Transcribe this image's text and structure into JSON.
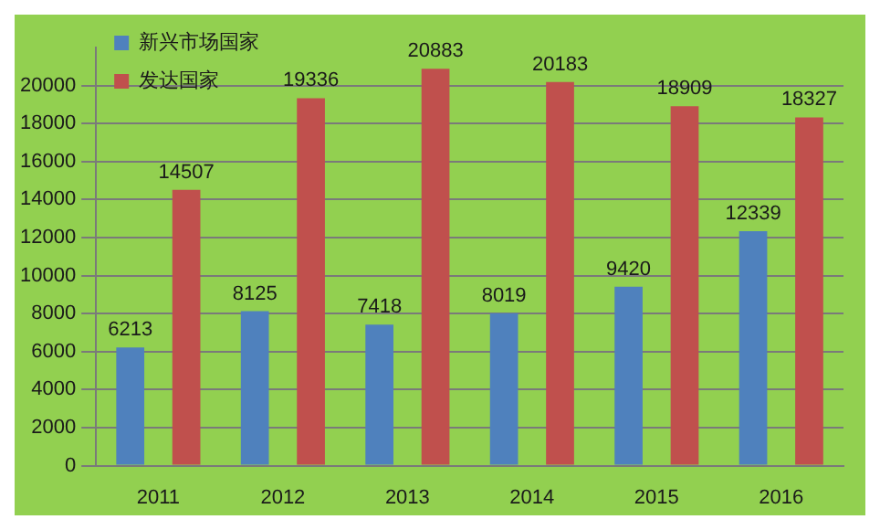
{
  "chart_data": {
    "type": "bar",
    "categories": [
      "2011",
      "2012",
      "2013",
      "2014",
      "2015",
      "2016"
    ],
    "series": [
      {
        "name": "新兴市场国家",
        "color": "#4f81bd",
        "values": [
          6213,
          8125,
          7418,
          8019,
          9420,
          12339
        ]
      },
      {
        "name": "发达国家",
        "color": "#c0504d",
        "values": [
          14507,
          19336,
          20883,
          20183,
          18909,
          18327
        ]
      }
    ],
    "ylim": [
      0,
      22000
    ],
    "yticks": [
      0,
      2000,
      4000,
      6000,
      8000,
      10000,
      12000,
      14000,
      16000,
      18000,
      20000
    ],
    "grid": "y",
    "legend": "top left",
    "data_labels": true
  }
}
